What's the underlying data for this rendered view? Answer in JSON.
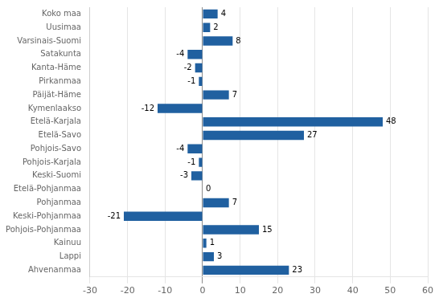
{
  "chart_data": {
    "type": "bar",
    "orientation": "horizontal",
    "categories": [
      "Koko maa",
      "Uusimaa",
      "Varsinais-Suomi",
      "Satakunta",
      "Kanta-Häme",
      "Pirkanmaa",
      "Päijät-Häme",
      "Kymenlaakso",
      "Etelä-Karjala",
      "Etelä-Savo",
      "Pohjois-Savo",
      "Pohjois-Karjala",
      "Keski-Suomi",
      "Etelä-Pohjanmaa",
      "Pohjanmaa",
      "Keski-Pohjanmaa",
      "Pohjois-Pohjanmaa",
      "Kainuu",
      "Lappi",
      "Ahvenanmaa"
    ],
    "values": [
      4,
      2,
      8,
      -4,
      -2,
      -1,
      7,
      -12,
      48,
      27,
      -4,
      -1,
      -3,
      0,
      7,
      -21,
      15,
      1,
      3,
      23
    ],
    "color": "#2060a0",
    "xlim": [
      -30,
      60
    ],
    "xticks": [
      -30,
      -20,
      -10,
      0,
      10,
      20,
      30,
      40,
      50,
      60
    ],
    "grid": true,
    "data_labels": true
  }
}
